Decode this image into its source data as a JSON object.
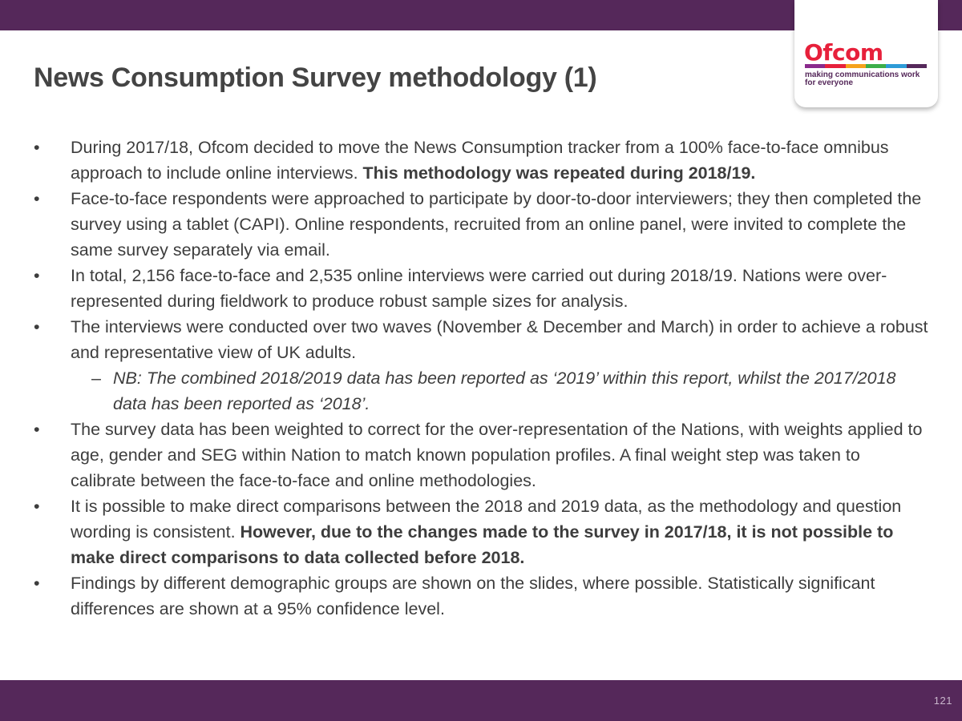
{
  "header": {
    "title": "News Consumption Survey methodology (1)"
  },
  "logo": {
    "wordmark": "Ofcom",
    "tagline_line1": "making communications work",
    "tagline_line2": "for everyone",
    "stripe_colors": [
      "#8a2a8c",
      "#e7203b",
      "#f5a21c",
      "#3cae49",
      "#2d9bd7",
      "#55285a"
    ]
  },
  "colors": {
    "brand_purple": "#55285a",
    "brand_red": "#e7203b"
  },
  "bullets": [
    {
      "marker": "•",
      "text": "During 2017/18, Ofcom decided to move the News Consumption tracker from a 100% face-to-face omnibus approach to include online interviews. ",
      "bold": "This methodology was repeated during 2018/19."
    },
    {
      "marker": "•",
      "text": "Face-to-face respondents were approached to participate by door-to-door interviewers; they then completed the survey using a tablet (CAPI).  Online respondents, recruited from an online panel, were invited to complete the same survey separately via email."
    },
    {
      "marker": "•",
      "text": "In total, 2,156 face-to-face and 2,535 online interviews were carried out during 2018/19. Nations were over-represented during fieldwork to produce robust sample sizes for analysis."
    },
    {
      "marker": "•",
      "text": "The interviews were conducted over two waves (November & December and March) in order to achieve a robust and representative view of UK adults.",
      "sub": {
        "marker": "–",
        "text": "NB: The combined 2018/2019 data has been reported as ‘2019’ within this report, whilst the 2017/2018 data has been reported as ‘2018’."
      }
    },
    {
      "marker": "•",
      "text": "The survey data has been weighted to correct for the over-representation of the Nations, with weights applied to age, gender and SEG within Nation to match known population profiles.  A final weight step was taken to calibrate between the face-to-face and online methodologies."
    },
    {
      "marker": "•",
      "text": "It is possible to make direct comparisons between the 2018 and 2019 data, as the methodology and question wording is consistent. ",
      "bold": "However, due to the changes made to the survey in 2017/18, it is not possible to make direct comparisons to data collected before 2018."
    },
    {
      "marker": "•",
      "text": "Findings by different demographic groups are shown on the slides, where possible. Statistically significant differences are shown at a 95% confidence level."
    }
  ],
  "footer": {
    "page_number": "121"
  }
}
